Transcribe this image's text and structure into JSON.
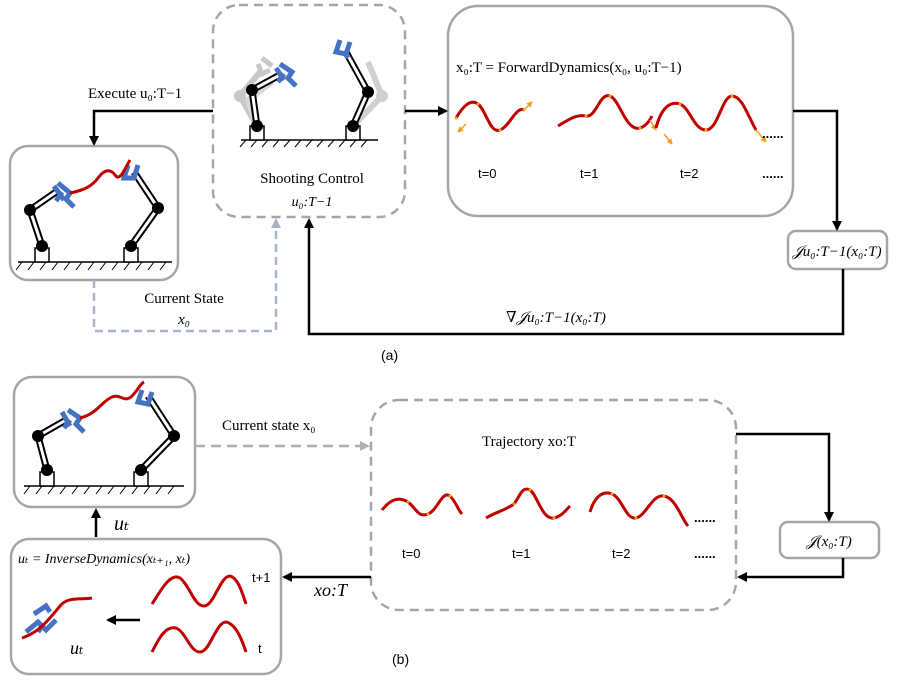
{
  "panel_a": {
    "execute_label": "Execute u₀:T−1",
    "shooting_title": "Shooting Control",
    "shooting_var": "u₀:T−1",
    "forward_eq": "x₀:T = ForwardDynamics(x₀, u₀:T−1)",
    "timesteps": [
      "t=0",
      "t=1",
      "t=2"
    ],
    "ellipsis": "......",
    "cost_label": "𝒥u₀:T−1(x₀:T)",
    "gradient_label": "∇𝒥u₀:T−1(x₀:T)",
    "current_state_label": "Current State",
    "current_state_var": "x₀",
    "caption": "(a)"
  },
  "panel_b": {
    "current_state_label": "Current state x₀",
    "trajectory_label": "Trajectory xo:T",
    "timesteps": [
      "t=0",
      "t=1",
      "t=2"
    ],
    "ellipsis": "......",
    "cost_label": "𝒥(x₀:T)",
    "traj_arrow_label": "xo:T",
    "ut_label": "uₜ",
    "inverse_eq": "uₜ = InverseDynamics(xₜ₊₁, xₜ)",
    "row_labels": [
      "t+1",
      "t"
    ],
    "ut_small_label": "uₜ",
    "caption": "(b)"
  },
  "colors": {
    "trajectory": "#c00000",
    "gripper": "#4472c4",
    "arrow_tangent": "#f0a020",
    "box_border": "#a6a6a6",
    "dashed_arrow": "#a6b5cc"
  }
}
